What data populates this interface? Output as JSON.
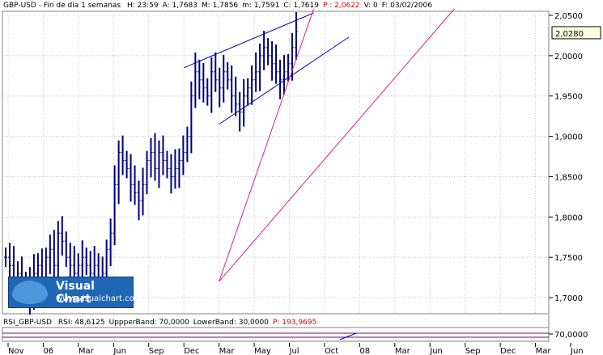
{
  "header": {
    "instrument": "GBP-USD - Fin de día 1 semanas",
    "fields": [
      {
        "label": "H:",
        "value": "23:59",
        "color": "#000000"
      },
      {
        "label": "A:",
        "value": "1,7683",
        "color": "#000000"
      },
      {
        "label": "M:",
        "value": "1,7856",
        "color": "#000000"
      },
      {
        "label": "m:",
        "value": "1,7591",
        "color": "#000000"
      },
      {
        "label": "C:",
        "value": "1,7619",
        "color": "#000000"
      },
      {
        "label": "P :",
        "value": "2,0622",
        "color": "#e00000"
      },
      {
        "label": "V:",
        "value": "0",
        "color": "#000000"
      },
      {
        "label": "F:",
        "value": "03/02/2006",
        "color": "#000000"
      }
    ]
  },
  "price_axis": {
    "ticks": [
      "2,0500",
      "2,0000",
      "1,9500",
      "1,9000",
      "1,8500",
      "1,8000",
      "1,7500",
      "1,7000"
    ],
    "current_price": "2,0280"
  },
  "rsi_panel": {
    "title": "RSI_GBP-USD",
    "fields": [
      {
        "label": "RSI:",
        "value": "48,6125",
        "color": "#000000"
      },
      {
        "label": "UppperBand:",
        "value": "70,0000",
        "color": "#000000"
      },
      {
        "label": "LowerBand:",
        "value": "30,0000",
        "color": "#000000"
      },
      {
        "label": "P:",
        "value": "193,9695",
        "color": "#e00000"
      }
    ],
    "axis_label": "70,0000"
  },
  "time_axis": [
    "Nov",
    "06",
    "Mar",
    "Jun",
    "Sep",
    "Dec",
    "Mar",
    "May",
    "Jul",
    "Oct",
    "08",
    "Mar",
    "Jun",
    "Sep",
    "Dec",
    "Mar",
    "Jun"
  ],
  "logo": {
    "name": "Visual Chart",
    "url": "www.visualchart.com"
  },
  "colors": {
    "bars": "#000080",
    "trend_blue": "#0000cc",
    "trend_magenta": "#e0207a",
    "grid": "#c8c8c8",
    "rsi_band": "#800080"
  },
  "chart_data": {
    "type": "line",
    "title": "GBP-USD - Fin de día 1 semanas",
    "ylim": [
      1.68,
      2.055
    ],
    "y_ticks": [
      2.05,
      2.0,
      1.95,
      1.9,
      1.85,
      1.8,
      1.75,
      1.7
    ],
    "x_tick_labels": [
      "Nov",
      "06",
      "Mar",
      "Jun",
      "Sep",
      "Dec",
      "Mar",
      "May",
      "Jul",
      "Oct",
      "08",
      "Mar",
      "Jun",
      "Sep",
      "Dec",
      "Mar",
      "Jun"
    ],
    "series": [
      {
        "values": [
          1.75,
          1.74,
          1.72,
          1.73,
          1.71,
          1.72,
          1.7,
          1.73,
          1.74,
          1.72,
          1.75,
          1.76,
          1.74,
          1.78,
          1.77,
          1.75,
          1.74,
          1.73,
          1.74,
          1.75,
          1.74,
          1.73,
          1.74,
          1.72,
          1.73,
          1.76,
          1.78,
          1.84,
          1.88,
          1.87,
          1.86,
          1.84,
          1.83,
          1.82,
          1.84,
          1.87,
          1.88,
          1.86,
          1.88,
          1.87,
          1.86,
          1.85,
          1.86,
          1.87,
          1.88,
          1.9,
          1.95,
          1.98,
          1.97,
          1.96,
          1.95,
          1.98,
          1.97,
          1.96,
          1.98,
          1.97,
          1.95,
          1.94,
          1.93,
          1.95,
          1.96,
          1.97,
          1.98,
          2.0,
          2.01,
          2.0,
          1.99,
          1.98,
          1.97,
          1.98,
          1.99,
          2.01,
          2.03
        ]
      }
    ],
    "trendlines": [
      {
        "color": "blue",
        "points": [
          [
            "Dec",
            1.985
          ],
          [
            "Jul",
            2.045
          ]
        ]
      },
      {
        "color": "blue",
        "points": [
          [
            "Mar",
            1.915
          ],
          [
            "Oct",
            2.015
          ]
        ]
      },
      {
        "color": "magenta",
        "points": [
          [
            "Mar",
            1.72
          ],
          [
            "Jun",
            2.05
          ]
        ]
      },
      {
        "color": "magenta",
        "points": [
          [
            "Mar",
            1.72
          ],
          [
            "Jul",
            2.05
          ]
        ]
      }
    ]
  }
}
